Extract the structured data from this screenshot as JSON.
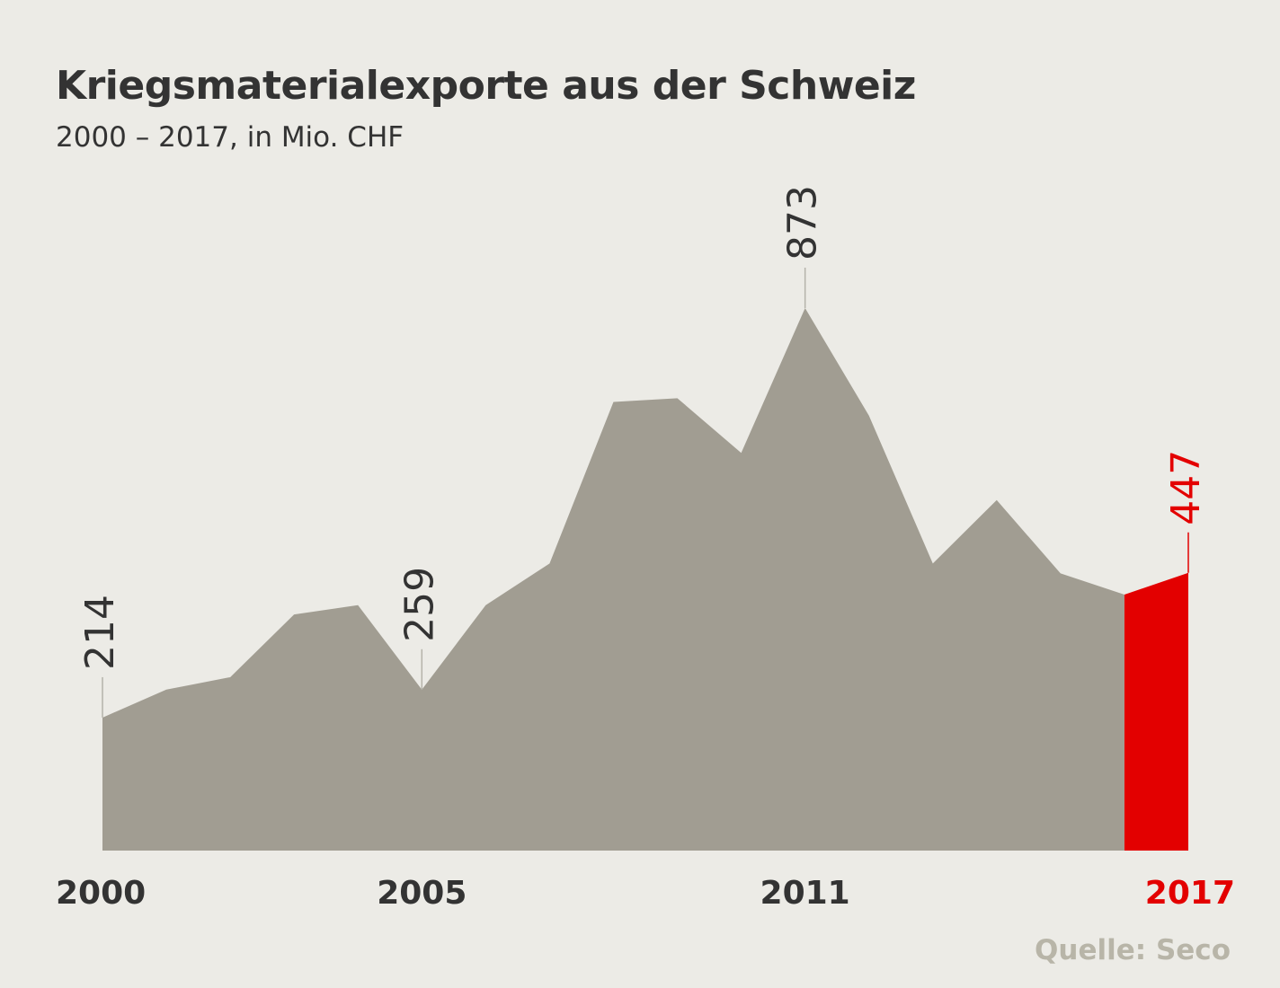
{
  "chart_data": {
    "type": "area",
    "title": "Kriegsmaterialexporte aus der Schweiz",
    "subtitle": "2000 – 2017, in Mio. CHF",
    "x": [
      2000,
      2001,
      2002,
      2003,
      2004,
      2005,
      2006,
      2007,
      2008,
      2009,
      2010,
      2011,
      2012,
      2013,
      2014,
      2015,
      2016,
      2017
    ],
    "values": [
      214,
      259,
      279,
      380,
      395,
      259,
      395,
      462,
      722,
      728,
      640,
      873,
      700,
      462,
      564,
      446,
      412,
      447
    ],
    "ylim": [
      0,
      873
    ],
    "x_tick_labels": [
      "2000",
      "2005",
      "2011",
      "2017"
    ],
    "value_labels": [
      {
        "year": 2000,
        "text": "214"
      },
      {
        "year": 2005,
        "text": "259"
      },
      {
        "year": 2011,
        "text": "873"
      },
      {
        "year": 2017,
        "text": "447"
      }
    ],
    "highlight": {
      "from": 2016,
      "to": 2017,
      "color": "#e30000"
    },
    "colors": {
      "area": "#a19d92",
      "highlight": "#e30000",
      "text": "#333333",
      "leader": "#b5b3aa"
    },
    "grid": false,
    "legend": "none"
  },
  "source": "Quelle: Seco"
}
